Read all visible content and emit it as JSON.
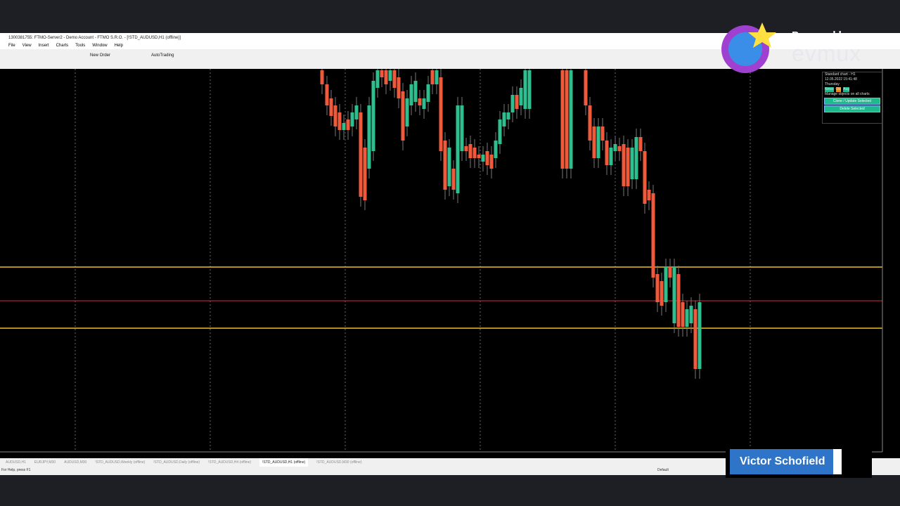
{
  "window": {
    "title": "1300381755: FTMO-Server2 - Demo Account - FTMO S.R.O. - [!STD_AUDUSD,H1 (offline)]"
  },
  "menu": {
    "items": [
      "File",
      "View",
      "Insert",
      "Charts",
      "Tools",
      "Window",
      "Help"
    ]
  },
  "toolbar": {
    "new_order": "New Order",
    "autotrading": "AutoTrading"
  },
  "panel": {
    "title": "Standard chart - H1",
    "datetime": "12.05.2022  15:41:48",
    "weekday": "Thursday",
    "buttons_row": [
      "News",
      "Obj",
      "Aug"
    ],
    "manage": "Manage objects on all charts",
    "clone": "Clone / Update Selected",
    "delete": "Delete Selected"
  },
  "tabs": [
    "AUDUSD,H1",
    "EURJPY,M30",
    "AUDUSD,M30",
    "!STD_AUDUSD,Weekly (offline)",
    "!STD_AUDUSD,Daily (offline)",
    "!STD_AUDUSD,H4 (offline)",
    "!STD_AUDUSD,H1 (offline)",
    "!STD_AUDUSD,M30 (offline)"
  ],
  "status": {
    "help": "For Help, press F1",
    "profile": "Default"
  },
  "overlay": {
    "powered": "Powered by",
    "brand": "evmux",
    "presenter": "Victor Schofield"
  }
}
